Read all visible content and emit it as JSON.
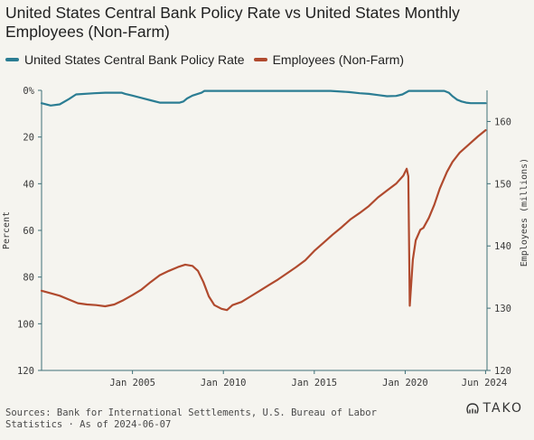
{
  "chart_data": {
    "type": "line",
    "title": "United States Central Bank Policy Rate vs United States Monthly Employees (Non-Farm)",
    "y_left_label": "Percent",
    "y_right_label": "Employees (millions)",
    "y_left_inverted": true,
    "y_left_lim": [
      0,
      120
    ],
    "y_left_ticks": [
      "0%",
      "20",
      "40",
      "60",
      "80",
      "100",
      "120"
    ],
    "y_right_lim": [
      120,
      165
    ],
    "y_right_ticks": [
      "120",
      "130",
      "140",
      "150",
      "160"
    ],
    "x_lim": [
      2000.0,
      2024.5
    ],
    "x_ticks": [
      {
        "value": 2005,
        "label": "Jan 2005"
      },
      {
        "value": 2010,
        "label": "Jan 2010"
      },
      {
        "value": 2015,
        "label": "Jan 2015"
      },
      {
        "value": 2020,
        "label": "Jan 2020"
      },
      {
        "value": 2024.42,
        "label": "Jun 2024"
      }
    ],
    "grid": false,
    "legend_position": "top-left",
    "series": [
      {
        "name": "United States Central Bank Policy Rate",
        "axis": "left",
        "color": "#2b7d93",
        "points": [
          [
            2000.0,
            5.5
          ],
          [
            2000.5,
            6.5
          ],
          [
            2001.0,
            6.0
          ],
          [
            2001.5,
            3.75
          ],
          [
            2001.9,
            1.75
          ],
          [
            2002.9,
            1.25
          ],
          [
            2003.5,
            1.0
          ],
          [
            2004.4,
            1.0
          ],
          [
            2004.6,
            1.5
          ],
          [
            2005.0,
            2.25
          ],
          [
            2005.5,
            3.25
          ],
          [
            2006.0,
            4.25
          ],
          [
            2006.5,
            5.25
          ],
          [
            2007.6,
            5.25
          ],
          [
            2007.8,
            4.75
          ],
          [
            2008.0,
            3.5
          ],
          [
            2008.3,
            2.25
          ],
          [
            2008.8,
            1.0
          ],
          [
            2008.96,
            0.25
          ],
          [
            2015.9,
            0.25
          ],
          [
            2016.9,
            0.75
          ],
          [
            2017.5,
            1.25
          ],
          [
            2018.0,
            1.5
          ],
          [
            2018.5,
            2.0
          ],
          [
            2019.0,
            2.5
          ],
          [
            2019.5,
            2.4
          ],
          [
            2019.85,
            1.75
          ],
          [
            2020.2,
            0.25
          ],
          [
            2022.15,
            0.25
          ],
          [
            2022.4,
            1.0
          ],
          [
            2022.6,
            2.5
          ],
          [
            2022.85,
            4.0
          ],
          [
            2023.1,
            4.75
          ],
          [
            2023.35,
            5.25
          ],
          [
            2023.6,
            5.5
          ],
          [
            2024.42,
            5.5
          ]
        ]
      },
      {
        "name": "Employees (Non-Farm)",
        "axis": "right",
        "color": "#b04a2e",
        "points": [
          [
            2000.0,
            132.8
          ],
          [
            2000.5,
            132.4
          ],
          [
            2001.0,
            132.0
          ],
          [
            2001.5,
            131.4
          ],
          [
            2002.0,
            130.8
          ],
          [
            2002.5,
            130.6
          ],
          [
            2003.0,
            130.5
          ],
          [
            2003.5,
            130.3
          ],
          [
            2004.0,
            130.6
          ],
          [
            2004.5,
            131.3
          ],
          [
            2005.0,
            132.1
          ],
          [
            2005.5,
            133.0
          ],
          [
            2006.0,
            134.2
          ],
          [
            2006.5,
            135.3
          ],
          [
            2007.0,
            136.0
          ],
          [
            2007.5,
            136.6
          ],
          [
            2007.9,
            137.0
          ],
          [
            2008.3,
            136.8
          ],
          [
            2008.6,
            136.0
          ],
          [
            2008.9,
            134.2
          ],
          [
            2009.2,
            131.9
          ],
          [
            2009.5,
            130.5
          ],
          [
            2009.9,
            129.9
          ],
          [
            2010.2,
            129.7
          ],
          [
            2010.5,
            130.5
          ],
          [
            2011.0,
            131.0
          ],
          [
            2011.5,
            131.9
          ],
          [
            2012.0,
            132.8
          ],
          [
            2012.5,
            133.7
          ],
          [
            2013.0,
            134.6
          ],
          [
            2013.5,
            135.6
          ],
          [
            2014.0,
            136.6
          ],
          [
            2014.5,
            137.7
          ],
          [
            2015.0,
            139.2
          ],
          [
            2015.5,
            140.5
          ],
          [
            2016.0,
            141.8
          ],
          [
            2016.5,
            143.0
          ],
          [
            2017.0,
            144.3
          ],
          [
            2017.5,
            145.3
          ],
          [
            2018.0,
            146.4
          ],
          [
            2018.5,
            147.8
          ],
          [
            2019.0,
            148.9
          ],
          [
            2019.5,
            150.0
          ],
          [
            2019.9,
            151.3
          ],
          [
            2020.08,
            152.4
          ],
          [
            2020.17,
            151.2
          ],
          [
            2020.25,
            130.4
          ],
          [
            2020.42,
            137.8
          ],
          [
            2020.58,
            140.9
          ],
          [
            2020.83,
            142.6
          ],
          [
            2021.0,
            142.9
          ],
          [
            2021.3,
            144.5
          ],
          [
            2021.6,
            146.6
          ],
          [
            2021.9,
            149.2
          ],
          [
            2022.3,
            151.9
          ],
          [
            2022.6,
            153.5
          ],
          [
            2023.0,
            155.0
          ],
          [
            2023.5,
            156.3
          ],
          [
            2024.0,
            157.6
          ],
          [
            2024.42,
            158.6
          ]
        ]
      }
    ]
  },
  "legend": {
    "items": [
      {
        "label": "United States Central Bank Policy Rate",
        "color": "#2b7d93"
      },
      {
        "label": "Employees (Non-Farm)",
        "color": "#b04a2e"
      }
    ]
  },
  "footer": {
    "sources": "Sources: Bank for International Settlements, U.S. Bureau of Labor Statistics · As of 2024-06-07"
  },
  "brand": {
    "name": "TAKO"
  }
}
